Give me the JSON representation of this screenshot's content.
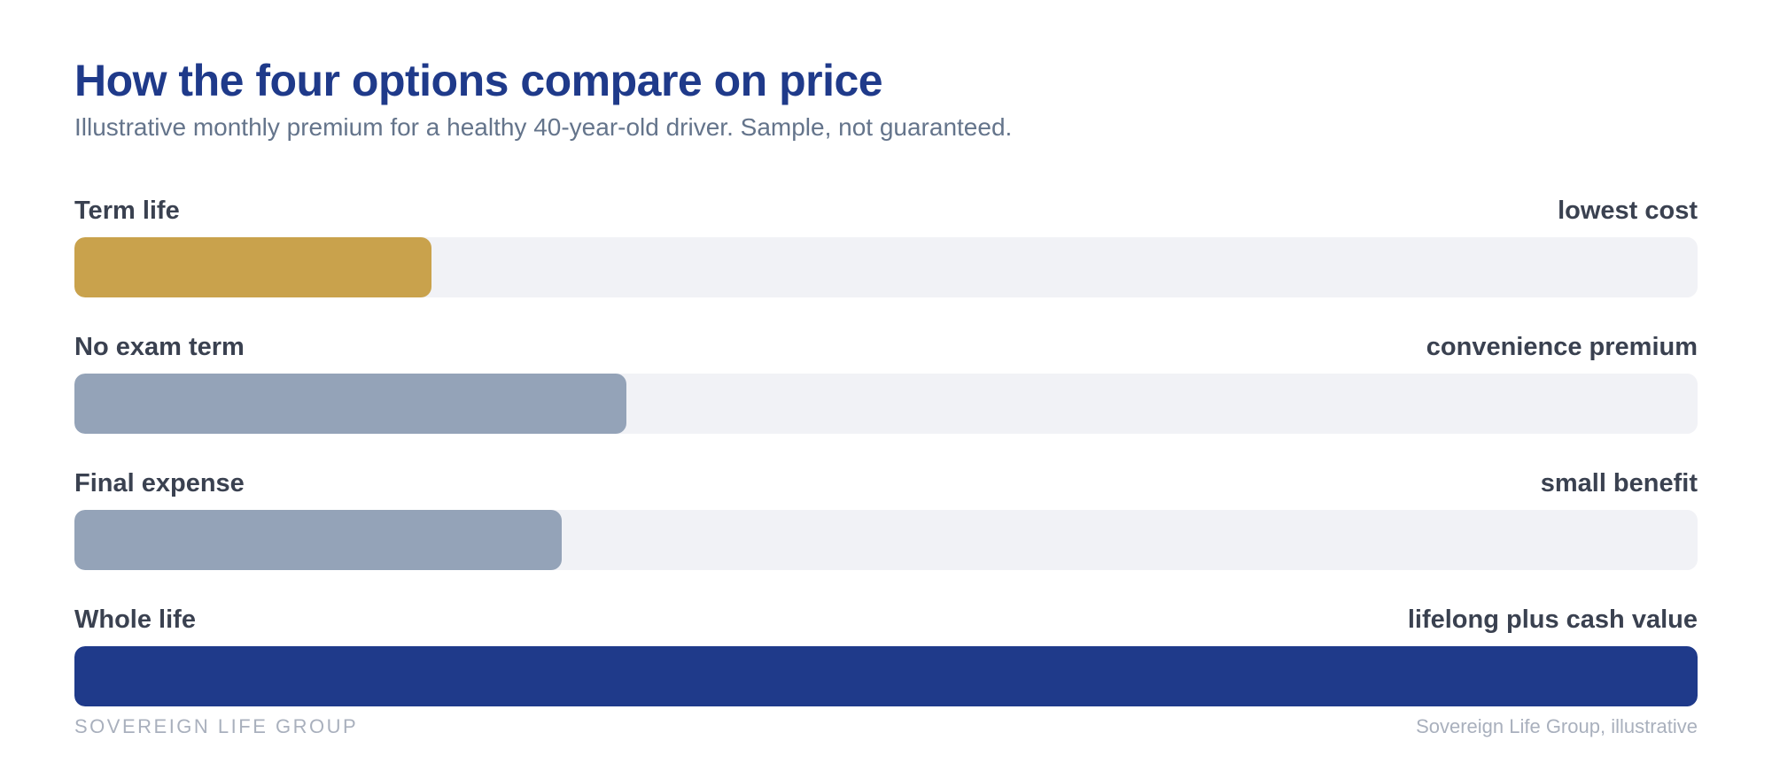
{
  "chart_data": {
    "type": "bar",
    "orientation": "horizontal",
    "title": "How the four options compare on price",
    "subtitle": "Illustrative monthly premium for a healthy 40-year-old driver. Sample, not guaranteed.",
    "categories": [
      "Term life",
      "No exam term",
      "Final expense",
      "Whole life"
    ],
    "notes": [
      "lowest cost",
      "convenience premium",
      "small benefit",
      "lifelong plus cash value"
    ],
    "values": [
      0.22,
      0.34,
      0.3,
      1.0
    ],
    "value_scale": "relative to highest premium (Whole life = 1.0)",
    "colors": [
      "#c9a24c",
      "#94a3b8",
      "#94a3b8",
      "#1f3a8a"
    ],
    "track_color": "#f1f2f6",
    "xlim": [
      0,
      1
    ],
    "grid": false,
    "legend": "none"
  },
  "footer": {
    "brand": "SOVEREIGN LIFE GROUP",
    "source": "Sovereign Life Group, illustrative"
  }
}
